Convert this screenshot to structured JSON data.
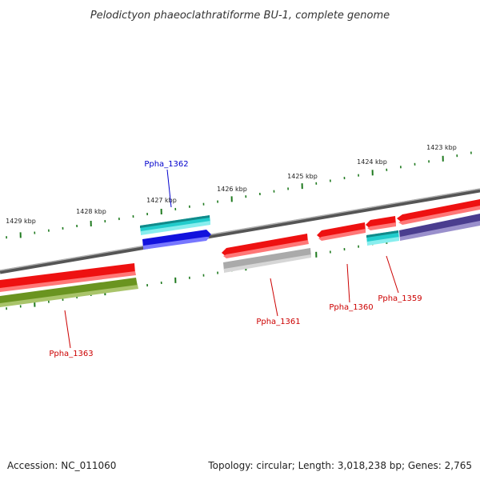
{
  "title": "Pelodictyon phaeoclathratiforme BU-1, complete genome",
  "footer": {
    "accession": "Accession: NC_011060",
    "topology": "Topology: circular; Length: 3,018,238 bp; Genes: 2,765"
  },
  "colors": {
    "backbone": "#7a7a7a",
    "tick": "#1f7a1f",
    "label_red": "#cc0000",
    "label_blue": "#0000cc"
  },
  "tick_labels": [
    "1429 kbp",
    "1428 kbp",
    "1427 kbp",
    "1426 kbp",
    "1425 kbp",
    "1424 kbp",
    "1423 kbp"
  ],
  "features": [
    {
      "name": "red",
      "color": "#ee1111"
    },
    {
      "name": "olive",
      "color": "#6a9420"
    },
    {
      "name": "cyan",
      "color": "#22cccc"
    },
    {
      "name": "blue",
      "color": "#1111dd"
    },
    {
      "name": "grey",
      "color": "#aaaaaa"
    },
    {
      "name": "navy",
      "color": "#4a3d8f"
    }
  ],
  "gene_labels": [
    {
      "id": "ppha-1362",
      "text": "Ppha_1362",
      "color": "blue"
    },
    {
      "id": "ppha-1361",
      "text": "Ppha_1361",
      "color": "red"
    },
    {
      "id": "ppha-1360",
      "text": "Ppha_1360",
      "color": "red"
    },
    {
      "id": "ppha-1359",
      "text": "Ppha_1359",
      "color": "red"
    },
    {
      "id": "ppha-1363",
      "text": "Ppha_1363",
      "color": "red"
    }
  ]
}
